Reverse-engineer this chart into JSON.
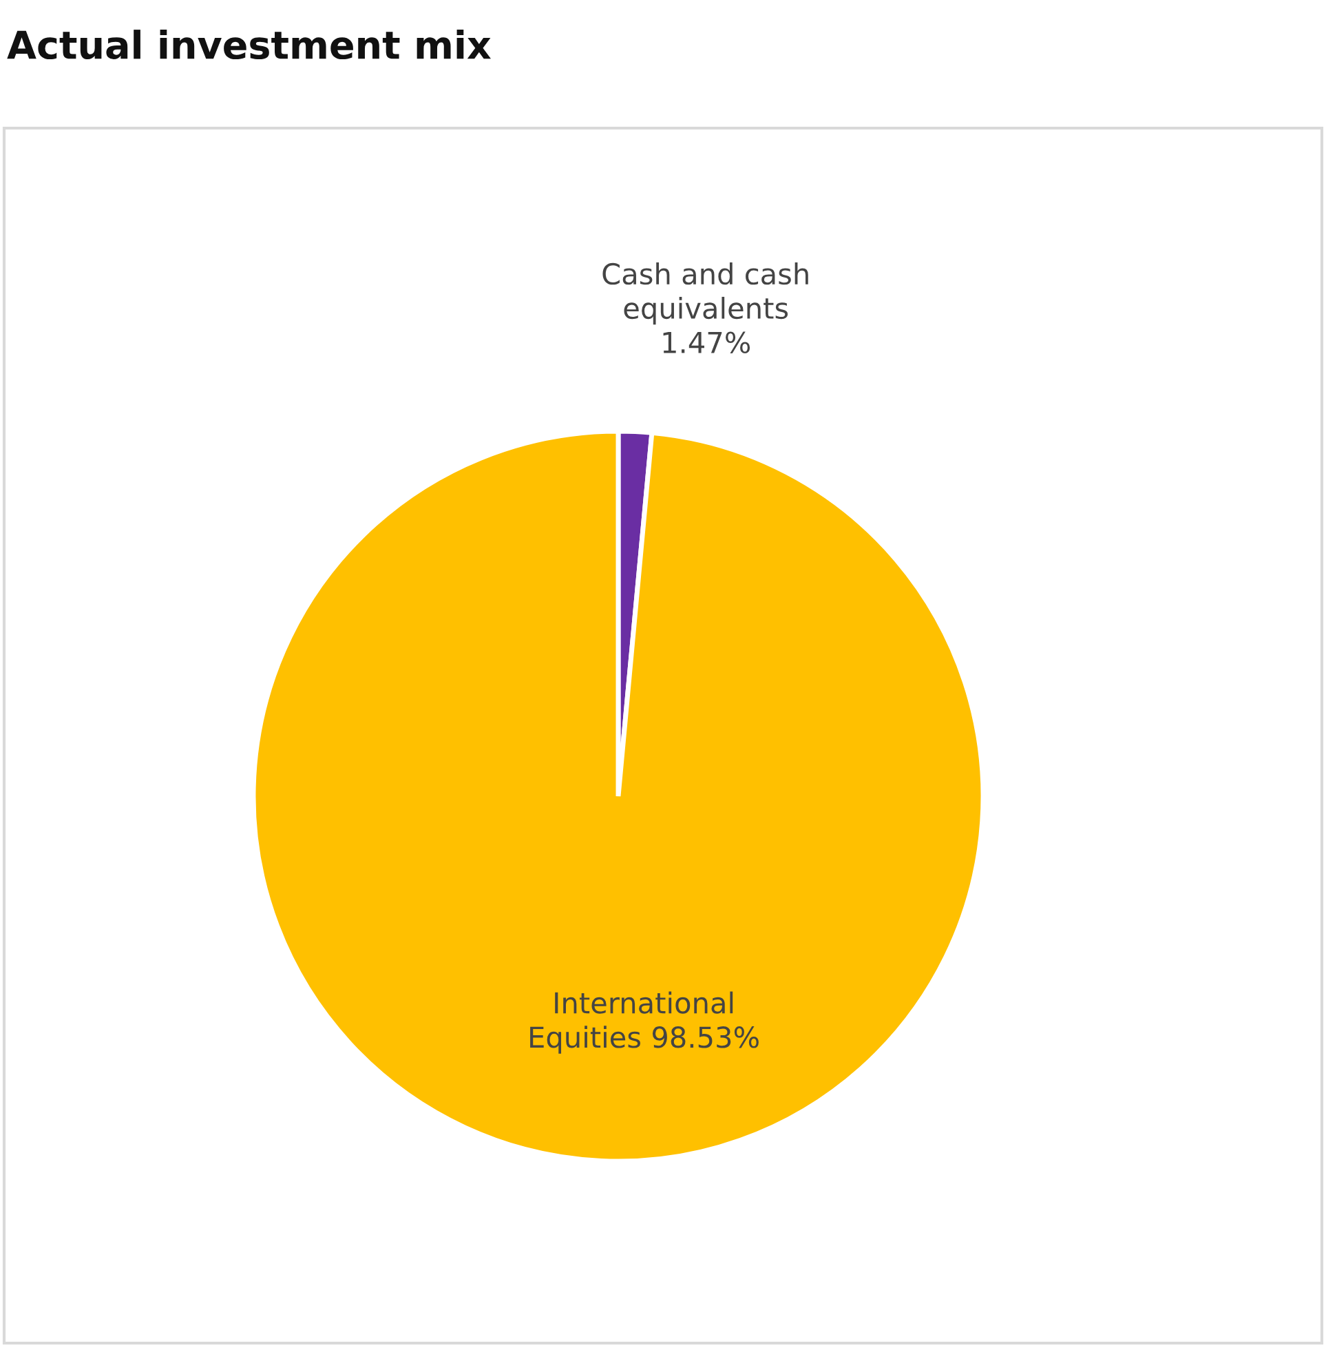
{
  "chart_data": {
    "type": "pie",
    "title": "Actual investment mix",
    "categories": [
      "Cash and cash equivalents",
      "International Equities"
    ],
    "values": [
      1.47,
      98.53
    ],
    "colors": [
      "#6a2ea3",
      "#ffc000"
    ],
    "value_labels": [
      "1.47%",
      "98.53%"
    ],
    "legend": false
  }
}
